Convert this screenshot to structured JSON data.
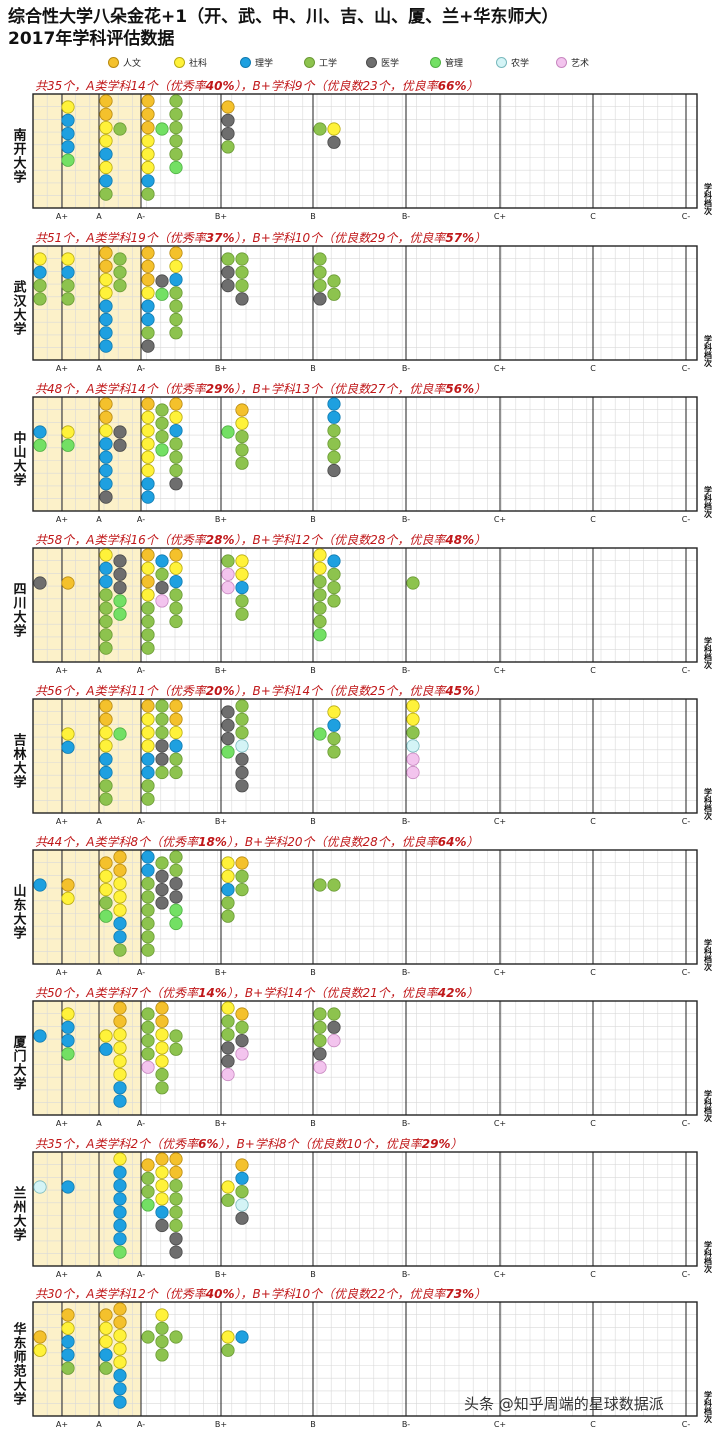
{
  "title_line1": "综合性大学八朵金花+1（开、武、中、川、吉、山、厦、兰+华东师大）",
  "title_line2": "2017年学科评估数据",
  "legend": [
    {
      "label": "人文",
      "color": "#f4c12c"
    },
    {
      "label": "社科",
      "color": "#fff23a"
    },
    {
      "label": "理学",
      "color": "#1ea0e0"
    },
    {
      "label": "工学",
      "color": "#8dc34e"
    },
    {
      "label": "医学",
      "color": "#6e6e6e"
    },
    {
      "label": "管理",
      "color": "#73e064"
    },
    {
      "label": "农学",
      "color": "#d4f4f6"
    },
    {
      "label": "艺术",
      "color": "#f3c4ee"
    }
  ],
  "grades": [
    "A+",
    "A",
    "A-",
    "B+",
    "B",
    "B-",
    "C+",
    "C",
    "C-"
  ],
  "axis_side_label": "学科档次",
  "watermark": "头条 @知乎周端的星球数据派",
  "chart_data": {
    "type": "scatter",
    "title": "综合性大学八朵金花+1（开、武、中、川、吉、山、厦、兰+华东师大） 2017年学科评估数据",
    "xlabel": "学科档次",
    "categories": [
      "A+",
      "A",
      "A-",
      "B+",
      "B",
      "B-",
      "C+",
      "C"
    ],
    "panels": [
      {
        "university": "南开大学",
        "stats": {
          "total": "共35个",
          "a_class": "A类学科14个",
          "a_rate_prefix": "（优秀率",
          "a_rate": "40%",
          "b_plus": "B+学科9个",
          "good_prefix": "（优良数23个，优良率",
          "good_rate": "66%"
        },
        "columns": [
          [],
          [
            "社科",
            "理学",
            "理学",
            "理学",
            "管理"
          ],
          [
            "人文",
            "人文",
            "社科",
            "社科",
            "理学",
            "社科",
            "理学",
            "工学"
          ],
          [
            "工学"
          ],
          [
            "人文",
            "人文",
            "人文",
            "社科",
            "社科",
            "社科",
            "理学",
            "工学"
          ],
          [
            "管理"
          ],
          [
            "工学",
            "工学",
            "工学",
            "工学",
            "工学",
            "管理"
          ],
          [
            "人文",
            "医学",
            "医学",
            "工学"
          ],
          [],
          [
            "工学"
          ],
          [
            "社科",
            "医学"
          ]
        ]
      },
      {
        "university": "武汉大学",
        "stats": {
          "total": "共51个",
          "a_class": "A类学科19个",
          "a_rate_prefix": "（优秀率",
          "a_rate": "37%",
          "b_plus": "B+学科10个",
          "good_prefix": "（优良数29个，优良率",
          "good_rate": "57%"
        },
        "columns": [
          [
            "社科",
            "理学",
            "工学",
            "工学"
          ],
          [
            "社科",
            "理学",
            "工学",
            "工学"
          ],
          [
            "人文",
            "人文",
            "社科",
            "社科",
            "理学",
            "理学",
            "理学",
            "理学"
          ],
          [
            "工学",
            "工学",
            "工学"
          ],
          [
            "人文",
            "人文",
            "人文",
            "社科",
            "理学",
            "理学",
            "工学",
            "医学"
          ],
          [
            "医学",
            "管理"
          ],
          [
            "人文",
            "社科",
            "理学",
            "工学",
            "工学",
            "工学",
            "工学"
          ],
          [
            "工学",
            "医学",
            "医学"
          ],
          [
            "工学",
            "工学",
            "工学",
            "医学"
          ],
          [
            "工学",
            "工学",
            "工学",
            "医学"
          ],
          [
            "工学",
            "工学"
          ],
          []
        ]
      },
      {
        "university": "中山大学",
        "stats": {
          "total": "共48个",
          "a_class": "A类学科14个",
          "a_rate_prefix": "（优秀率",
          "a_rate": "29%",
          "b_plus": "B+学科13个",
          "good_prefix": "（优良数27个，优良率",
          "good_rate": "56%"
        },
        "columns": [
          [
            "理学",
            "管理"
          ],
          [
            "社科",
            "管理"
          ],
          [
            "人文",
            "人文",
            "社科",
            "理学",
            "理学",
            "理学",
            "理学",
            "医学"
          ],
          [
            "医学",
            "医学"
          ],
          [
            "人文",
            "社科",
            "社科",
            "社科",
            "社科",
            "社科",
            "理学",
            "理学"
          ],
          [
            "工学",
            "工学",
            "工学",
            "管理"
          ],
          [
            "人文",
            "社科",
            "理学",
            "工学",
            "工学",
            "工学",
            "医学"
          ],
          [
            "管理"
          ],
          [
            "人文",
            "社科",
            "工学",
            "工学",
            "工学"
          ],
          [],
          [
            "理学",
            "理学",
            "工学",
            "工学",
            "工学",
            "医学"
          ],
          []
        ]
      },
      {
        "university": "四川大学",
        "stats": {
          "total": "共58个",
          "a_class": "A类学科16个",
          "a_rate_prefix": "（优秀率",
          "a_rate": "28%",
          "b_plus": "B+学科12个",
          "good_prefix": "（优良数28个，优良率",
          "good_rate": "48%"
        },
        "columns": [
          [
            "医学"
          ],
          [
            "人文"
          ],
          [
            "社科",
            "理学",
            "理学",
            "工学",
            "工学",
            "工学",
            "工学",
            "工学"
          ],
          [
            "医学",
            "医学",
            "医学",
            "管理",
            "管理"
          ],
          [
            "人文",
            "社科",
            "人文",
            "社科",
            "工学",
            "工学",
            "工学",
            "工学"
          ],
          [
            "理学",
            "工学",
            "医学",
            "艺术"
          ],
          [
            "人文",
            "社科",
            "理学",
            "工学",
            "工学",
            "工学"
          ],
          [
            "工学",
            "艺术",
            "艺术"
          ],
          [
            "社科",
            "社科",
            "理学",
            "工学",
            "工学"
          ],
          [
            "社科",
            "社科",
            "工学",
            "工学",
            "工学",
            "工学",
            "管理"
          ],
          [
            "理学",
            "工学",
            "工学",
            "工学"
          ],
          [
            "工学"
          ]
        ]
      },
      {
        "university": "吉林大学",
        "stats": {
          "total": "共56个",
          "a_class": "A类学科11个",
          "a_rate_prefix": "（优秀率",
          "a_rate": "20%",
          "b_plus": "B+学科14个",
          "good_prefix": "（优良数25个，优良率",
          "good_rate": "45%"
        },
        "columns": [
          [],
          [
            "社科",
            "理学"
          ],
          [
            "人文",
            "人文",
            "社科",
            "社科",
            "理学",
            "理学",
            "工学",
            "工学"
          ],
          [
            "管理"
          ],
          [
            "人文",
            "社科",
            "社科",
            "社科",
            "理学",
            "理学",
            "工学",
            "工学"
          ],
          [
            "工学",
            "工学",
            "工学",
            "医学",
            "医学",
            "工学"
          ],
          [
            "人文",
            "人文",
            "社科",
            "理学",
            "工学",
            "工学"
          ],
          [
            "医学",
            "医学",
            "医学",
            "管理"
          ],
          [
            "工学",
            "工学",
            "工学",
            "农学",
            "医学",
            "医学",
            "医学"
          ],
          [
            "管理"
          ],
          [
            "社科",
            "理学",
            "工学",
            "工学"
          ],
          [
            "社科",
            "社科",
            "工学",
            "农学",
            "艺术",
            "艺术"
          ]
        ]
      },
      {
        "university": "山东大学",
        "stats": {
          "total": "共44个",
          "a_class": "A类学科8个",
          "a_rate_prefix": "（优秀率",
          "a_rate": "18%",
          "b_plus": "B+学科20个",
          "good_prefix": "（优良数28个，优良率",
          "good_rate": "64%"
        },
        "columns": [
          [
            "理学"
          ],
          [
            "人文",
            "社科"
          ],
          [
            "人文",
            "社科",
            "社科",
            "工学",
            "管理"
          ],
          [
            "人文",
            "人文",
            "社科",
            "社科",
            "社科",
            "理学",
            "理学",
            "工学"
          ],
          [
            "理学",
            "理学",
            "工学",
            "工学",
            "工学",
            "工学",
            "工学",
            "工学"
          ],
          [
            "工学",
            "医学",
            "医学",
            "医学"
          ],
          [
            "工学",
            "工学",
            "医学",
            "医学",
            "管理",
            "管理"
          ],
          [
            "社科",
            "社科",
            "理学",
            "工学",
            "工学"
          ],
          [
            "人文",
            "工学",
            "工学"
          ],
          [
            "工学"
          ],
          [
            "工学"
          ]
        ]
      },
      {
        "university": "厦门大学",
        "stats": {
          "total": "共50个",
          "a_class": "A类学科7个",
          "a_rate_prefix": "（优秀率",
          "a_rate": "14%",
          "b_plus": "B+学科14个",
          "good_prefix": "（优良数21个，优良率",
          "good_rate": "42%"
        },
        "columns": [
          [
            "理学"
          ],
          [
            "社科",
            "理学",
            "理学",
            "管理"
          ],
          [
            "社科",
            "理学"
          ],
          [
            "人文",
            "人文",
            "社科",
            "社科",
            "社科",
            "社科",
            "理学",
            "理学"
          ],
          [
            "工学",
            "工学",
            "工学",
            "工学",
            "艺术"
          ],
          [
            "人文",
            "人文",
            "社科",
            "社科",
            "社科",
            "工学",
            "工学"
          ],
          [
            "工学",
            "工学"
          ],
          [
            "社科",
            "工学",
            "工学",
            "医学",
            "医学",
            "艺术"
          ],
          [
            "人文",
            "工学",
            "医学",
            "艺术"
          ],
          [
            "工学",
            "工学",
            "工学",
            "医学",
            "艺术"
          ],
          [
            "工学",
            "医学",
            "艺术"
          ]
        ]
      },
      {
        "university": "兰州大学",
        "stats": {
          "total": "共35个",
          "a_class": "A类学科2个",
          "a_rate_prefix": "（优秀率",
          "a_rate": "6%",
          "b_plus": "B+学科8个",
          "good_prefix": "（优良数10个，优良率",
          "good_rate": "29%"
        },
        "columns": [
          [
            "农学"
          ],
          [
            "理学"
          ],
          [],
          [
            "社科",
            "理学",
            "理学",
            "理学",
            "理学",
            "理学",
            "理学",
            "管理"
          ],
          [
            "人文",
            "工学",
            "工学",
            "管理"
          ],
          [
            "人文",
            "社科",
            "社科",
            "社科",
            "理学",
            "医学"
          ],
          [
            "人文",
            "人文",
            "工学",
            "工学",
            "工学",
            "工学",
            "医学",
            "医学"
          ],
          [
            "社科",
            "工学"
          ],
          [
            "人文",
            "理学",
            "工学",
            "农学",
            "医学"
          ]
        ]
      },
      {
        "university": "华东师范大学",
        "stats": {
          "total": "共30个",
          "a_class": "A类学科12个",
          "a_rate_prefix": "（优秀率",
          "a_rate": "40%",
          "b_plus": "B+学科10个",
          "good_prefix": "（优良数22个，优良率",
          "good_rate": "73%"
        },
        "columns": [
          [
            "人文",
            "社科"
          ],
          [
            "人文",
            "社科",
            "理学",
            "理学",
            "工学"
          ],
          [
            "人文",
            "社科",
            "社科",
            "理学",
            "工学"
          ],
          [
            "人文",
            "人文",
            "社科",
            "社科",
            "社科",
            "理学",
            "理学",
            "理学"
          ],
          [
            "工学"
          ],
          [
            "社科",
            "工学",
            "工学",
            "工学"
          ],
          [
            "工学"
          ],
          [
            "社科",
            "工学"
          ],
          [
            "理学"
          ]
        ]
      }
    ]
  }
}
